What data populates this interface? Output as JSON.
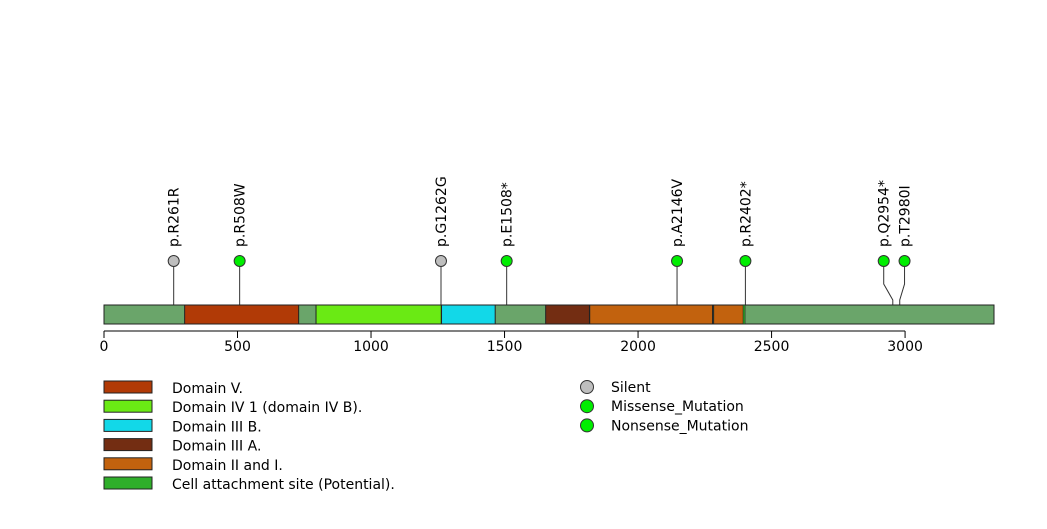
{
  "protein": {
    "length": 3333,
    "backbone_color": "#6aa56a"
  },
  "axis": {
    "ticks": [
      {
        "value": 0,
        "label": "0"
      },
      {
        "value": 500,
        "label": "500"
      },
      {
        "value": 1000,
        "label": "1000"
      },
      {
        "value": 1500,
        "label": "1500"
      },
      {
        "value": 2000,
        "label": "2000"
      },
      {
        "value": 2500,
        "label": "2500"
      },
      {
        "value": 3000,
        "label": "3000"
      }
    ]
  },
  "domains": [
    {
      "name": "Domain V.",
      "start": 302,
      "end": 729,
      "color": "#b13a06"
    },
    {
      "name": "Domain IV 1 (domain IV B).",
      "start": 794,
      "end": 1263,
      "color": "#6aea14"
    },
    {
      "name": "Domain III B.",
      "start": 1264,
      "end": 1465,
      "color": "#12d8e8"
    },
    {
      "name": "Domain III A.",
      "start": 1654,
      "end": 1818,
      "color": "#732d12"
    },
    {
      "name": "Domain II and I.",
      "start": 1819,
      "end": 2279,
      "color": "#c2620e"
    },
    {
      "name": "Domain II and I.",
      "start": 2283,
      "end": 2395,
      "color": "#c2620e"
    }
  ],
  "sites": [
    {
      "name": "Cell attachment site (Potential).",
      "position": 2397,
      "color": "#2fae2a"
    }
  ],
  "mutations": [
    {
      "label": "p.R261R",
      "position": 261,
      "label_position": 261,
      "type": "Silent"
    },
    {
      "label": "p.R508W",
      "position": 508,
      "label_position": 508,
      "type": "Missense_Mutation"
    },
    {
      "label": "p.G1262G",
      "position": 1262,
      "label_position": 1262,
      "type": "Silent"
    },
    {
      "label": "p.E1508*",
      "position": 1508,
      "label_position": 1508,
      "type": "Nonsense_Mutation"
    },
    {
      "label": "p.A2146V",
      "position": 2146,
      "label_position": 2146,
      "type": "Missense_Mutation"
    },
    {
      "label": "p.R2402*",
      "position": 2402,
      "label_position": 2402,
      "type": "Nonsense_Mutation"
    },
    {
      "label": "p.Q2954*",
      "position": 2954,
      "label_position": 2920,
      "type": "Nonsense_Mutation"
    },
    {
      "label": "p.T2980I",
      "position": 2980,
      "label_position": 2998,
      "type": "Missense_Mutation"
    }
  ],
  "legend_domains": [
    {
      "name": "Domain V.",
      "color": "#b13a06"
    },
    {
      "name": "Domain IV 1 (domain IV B).",
      "color": "#6aea14"
    },
    {
      "name": "Domain III B.",
      "color": "#12d8e8"
    },
    {
      "name": "Domain III A.",
      "color": "#732d12"
    },
    {
      "name": "Domain II and I.",
      "color": "#c2620e"
    },
    {
      "name": "Cell attachment site (Potential).",
      "color": "#2fae2a"
    }
  ],
  "legend_mutations": [
    {
      "name": "Silent",
      "color": "#bebebe"
    },
    {
      "name": "Missense_Mutation",
      "color": "#00ee00"
    },
    {
      "name": "Nonsense_Mutation",
      "color": "#00ee00"
    }
  ],
  "type_colors": {
    "Silent": "#bebebe",
    "Missense_Mutation": "#00ee00",
    "Nonsense_Mutation": "#00ee00"
  }
}
